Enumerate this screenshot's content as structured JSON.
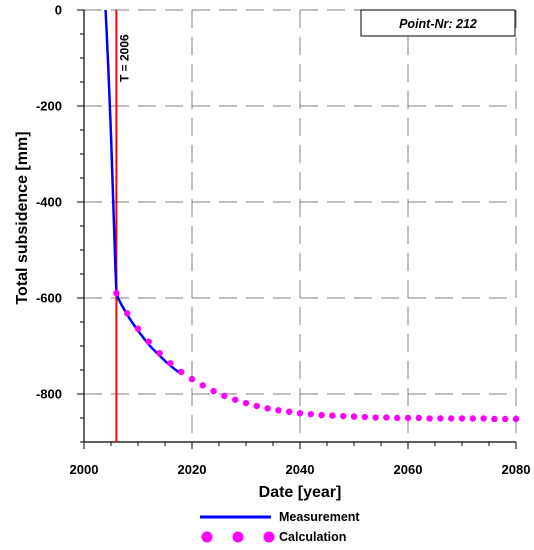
{
  "chart_data": {
    "type": "line",
    "title": "",
    "xlabel": "Date [year]",
    "ylabel": "Total subsidence [mm]",
    "xlim": [
      2000,
      2080
    ],
    "ylim": [
      -900,
      0
    ],
    "x_ticks": [
      2000,
      2020,
      2040,
      2060,
      2080
    ],
    "y_ticks": [
      0,
      -200,
      -400,
      -600,
      -800
    ],
    "grid": true,
    "legend_position": "bottom",
    "annotations": {
      "point_label": "Point-Nr: 212",
      "vertical_line_label": "T = 2006",
      "vertical_line_x": 2006
    },
    "series": [
      {
        "name": "Measurement",
        "style": "line",
        "color": "#0000ff",
        "x": [
          2004.0,
          2004.5,
          2005.0,
          2005.3,
          2005.6,
          2005.8,
          2006.0,
          2006.3,
          2007.0,
          2008.0,
          2009.0,
          2010.0,
          2011.0,
          2012.0,
          2013.0,
          2014.0,
          2015.0,
          2016.0,
          2017.0,
          2018.0
        ],
        "y": [
          0,
          -120,
          -260,
          -360,
          -460,
          -530,
          -585,
          -600,
          -615,
          -635,
          -652,
          -668,
          -683,
          -697,
          -709,
          -720,
          -731,
          -741,
          -750,
          -758
        ]
      },
      {
        "name": "Calculation",
        "style": "dots",
        "color": "#ff00ff",
        "x": [
          2006,
          2008,
          2010,
          2012,
          2014,
          2016,
          2018,
          2020,
          2022,
          2024,
          2026,
          2028,
          2030,
          2032,
          2034,
          2036,
          2038,
          2040,
          2042,
          2044,
          2046,
          2048,
          2050,
          2052,
          2054,
          2056,
          2058,
          2060,
          2062,
          2064,
          2066,
          2068,
          2070,
          2072,
          2074,
          2076,
          2078,
          2080
        ],
        "y": [
          -590,
          -632,
          -664,
          -691,
          -715,
          -736,
          -754,
          -769,
          -782,
          -794,
          -804,
          -812,
          -819,
          -825,
          -830,
          -834,
          -837,
          -840,
          -842,
          -844,
          -845,
          -846,
          -847,
          -848,
          -849,
          -849,
          -850,
          -850,
          -850,
          -851,
          -851,
          -851,
          -851,
          -851,
          -851,
          -852,
          -852,
          -852
        ]
      }
    ]
  },
  "colors": {
    "measurement": "#0000ff",
    "calculation": "#ff00ff",
    "reference_line": "#ff0000",
    "grid": "#808080"
  }
}
